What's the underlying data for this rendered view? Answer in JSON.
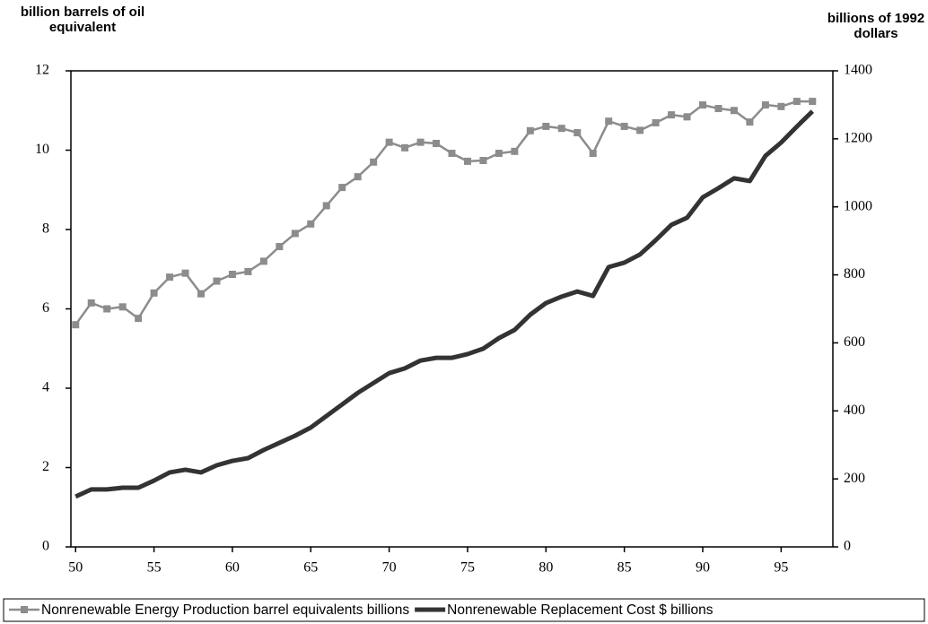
{
  "chart_data": {
    "type": "line",
    "y_label": "billion barrels of oil equivalent",
    "y2_label": "billions of 1992 dollars",
    "x": [
      50,
      51,
      52,
      53,
      54,
      55,
      56,
      57,
      58,
      59,
      60,
      61,
      62,
      63,
      64,
      65,
      66,
      67,
      68,
      69,
      70,
      71,
      72,
      73,
      74,
      75,
      76,
      77,
      78,
      79,
      80,
      81,
      82,
      83,
      84,
      85,
      86,
      87,
      88,
      89,
      90,
      91,
      92,
      93,
      94,
      95,
      96,
      97
    ],
    "xlim": [
      49.7,
      98.3
    ],
    "xticks": [
      50,
      55,
      60,
      65,
      70,
      75,
      80,
      85,
      90,
      95
    ],
    "ylim": [
      0,
      12
    ],
    "yticks": [
      0,
      2,
      4,
      6,
      8,
      10,
      12
    ],
    "y2lim": [
      0,
      1400
    ],
    "y2ticks": [
      0,
      200,
      400,
      600,
      800,
      1000,
      1200,
      1400
    ],
    "legend": "bottom",
    "series": [
      {
        "name": "Nonrenewable Energy Production barrel equivalents billions",
        "color": "#8c8c8c",
        "marker": "square",
        "values": [
          5.6,
          6.15,
          6.0,
          6.05,
          5.76,
          6.4,
          6.8,
          6.9,
          6.38,
          6.7,
          6.87,
          6.94,
          7.2,
          7.57,
          7.9,
          8.14,
          8.6,
          9.06,
          9.33,
          9.7,
          10.2,
          10.06,
          10.2,
          10.17,
          9.92,
          9.72,
          9.74,
          9.92,
          9.97,
          10.49,
          10.6,
          10.55,
          10.44,
          9.92,
          10.73,
          10.6,
          10.5,
          10.69,
          10.89,
          10.84,
          11.14,
          11.05,
          11.0,
          10.71,
          11.14,
          11.1,
          11.23,
          11.23
        ]
      },
      {
        "name": "Nonrenewable Replacement Cost  $ billions",
        "color": "#333333",
        "axis": "y2",
        "values": [
          148,
          169,
          169,
          174,
          174,
          195,
          219,
          227,
          219,
          240,
          253,
          261,
          285,
          306,
          327,
          351,
          385,
          419,
          453,
          482,
          511,
          525,
          548,
          556,
          556,
          567,
          583,
          614,
          638,
          683,
          717,
          736,
          751,
          738,
          823,
          836,
          860,
          902,
          947,
          968,
          1028,
          1055,
          1084,
          1076,
          1150,
          1189,
          1236,
          1281
        ]
      }
    ]
  }
}
